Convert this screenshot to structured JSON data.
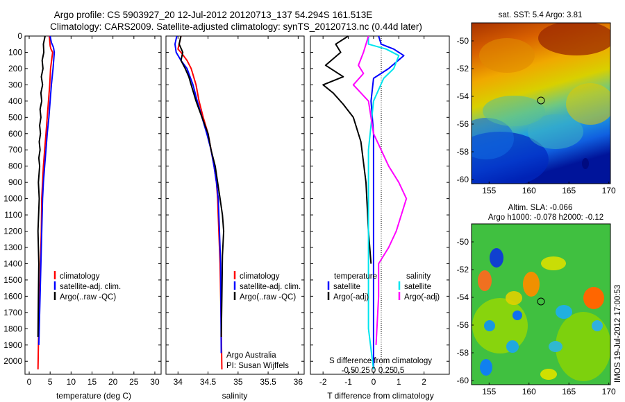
{
  "title": {
    "line1": "Argo profile: CS 5903927_20 12-Jul-2012 20120713_137 54.294S 161.513E",
    "line2": "Climatology: CARS2009. Satellite-adjusted climatology: synTS_20120713.nc (0.44d later)"
  },
  "side_label": "IMOS 19-Jul-2012 17:00:53",
  "colors": {
    "climatology": "#ff0000",
    "satellite": "#0000ff",
    "argo": "#000000",
    "sat_salinity": "#00e5ee",
    "argo_salinity": "#ff00ff"
  },
  "chart_data": [
    {
      "type": "line",
      "id": "temperature",
      "xlabel": "temperature (deg C)",
      "ylabel": "",
      "xlim": [
        -1,
        31.5
      ],
      "ylim": [
        2080,
        0
      ],
      "xticks": [
        0,
        5,
        10,
        15,
        20,
        25,
        30
      ],
      "yticks": [
        0,
        100,
        200,
        300,
        400,
        500,
        600,
        700,
        800,
        900,
        1000,
        1100,
        1200,
        1300,
        1400,
        1500,
        1600,
        1700,
        1800,
        1900,
        2000
      ],
      "legend": {
        "placement": "lower-right",
        "entries": [
          "climatology",
          "satellite-adj. clim.",
          "Argo(..raw -QC)"
        ]
      },
      "series": [
        {
          "name": "climatology",
          "color": "#ff0000",
          "x": [
            4.8,
            5.0,
            5.2,
            5.6,
            5.1,
            4.9,
            4.6,
            4.3,
            4.0,
            3.7,
            3.4,
            3.2,
            3.0,
            2.9,
            2.7,
            2.6,
            2.5,
            2.4,
            2.3,
            2.2,
            2.1
          ],
          "y": [
            0,
            60,
            80,
            100,
            200,
            300,
            400,
            500,
            600,
            700,
            800,
            900,
            1000,
            1200,
            1400,
            1500,
            1600,
            1700,
            1800,
            1900,
            2050
          ]
        },
        {
          "name": "satellite-adj. clim.",
          "color": "#0000ff",
          "x": [
            5.0,
            5.3,
            5.8,
            6.0,
            5.7,
            5.3,
            5.0,
            4.7,
            4.3,
            4.0,
            3.7,
            3.4,
            3.2,
            3.0,
            2.8,
            2.6,
            2.5,
            2.4,
            2.3
          ],
          "y": [
            0,
            40,
            70,
            100,
            200,
            300,
            400,
            500,
            600,
            700,
            800,
            900,
            1000,
            1200,
            1400,
            1600,
            1700,
            1800,
            1900
          ]
        },
        {
          "name": "Argo(..raw -QC)",
          "color": "#000000",
          "x": [
            3.8,
            3.4,
            3.5,
            3.1,
            3.3,
            2.9,
            3.2,
            2.8,
            3.0,
            2.6,
            2.8,
            2.5,
            2.7,
            2.4,
            2.6,
            2.3,
            2.5,
            2.2,
            2.4,
            2.1,
            2.3,
            2.2,
            2.1
          ],
          "y": [
            0,
            50,
            100,
            150,
            200,
            250,
            300,
            350,
            400,
            450,
            500,
            550,
            600,
            650,
            700,
            750,
            800,
            900,
            1000,
            1200,
            1400,
            1600,
            1850
          ]
        }
      ]
    },
    {
      "type": "line",
      "id": "salinity",
      "xlabel": "salinity",
      "ylabel": "",
      "xlim": [
        33.8,
        36.1
      ],
      "ylim": [
        2080,
        0
      ],
      "xticks": [
        34,
        34.5,
        35,
        35.5,
        36
      ],
      "legend": {
        "placement": "lower-right",
        "entries": [
          "climatology",
          "satellite-adj. clim.",
          "Argo(..raw -QC)"
        ]
      },
      "annotations": [
        "Argo Australia",
        "PI: Susan Wijffels"
      ],
      "series": [
        {
          "name": "climatology",
          "color": "#ff0000",
          "x": [
            34.05,
            34.0,
            34.05,
            34.15,
            34.22,
            34.3,
            34.35,
            34.42,
            34.5,
            34.55,
            34.6,
            34.64,
            34.66,
            34.68,
            34.7,
            34.72,
            34.73
          ],
          "y": [
            0,
            80,
            100,
            150,
            200,
            300,
            400,
            500,
            600,
            700,
            800,
            900,
            1000,
            1200,
            1400,
            1800,
            2050
          ]
        },
        {
          "name": "satellite-adj. clim.",
          "color": "#0000ff",
          "x": [
            33.98,
            33.95,
            33.97,
            34.05,
            34.15,
            34.25,
            34.32,
            34.4,
            34.48,
            34.55,
            34.6,
            34.64,
            34.67,
            34.69,
            34.71,
            34.72
          ],
          "y": [
            0,
            50,
            100,
            150,
            200,
            300,
            400,
            500,
            600,
            700,
            800,
            900,
            1000,
            1200,
            1400,
            1950
          ]
        },
        {
          "name": "Argo(..raw -QC)",
          "color": "#000000",
          "x": [
            34.05,
            34.02,
            34.08,
            34.05,
            34.12,
            34.18,
            34.22,
            34.3,
            34.35,
            34.4,
            34.5,
            34.55,
            34.62,
            34.66,
            34.7,
            34.74,
            34.76,
            34.74,
            34.73,
            34.72
          ],
          "y": [
            0,
            50,
            100,
            150,
            200,
            250,
            300,
            400,
            450,
            500,
            600,
            700,
            800,
            900,
            1000,
            1100,
            1200,
            1350,
            1600,
            1850
          ]
        }
      ]
    },
    {
      "type": "line",
      "id": "difference",
      "xlabel": "T difference from climatology",
      "top_xlabel": "S difference from climatology",
      "xlim": [
        -2.5,
        3
      ],
      "ylim": [
        2080,
        0
      ],
      "xticks": [
        -2,
        -1,
        0,
        1,
        2
      ],
      "top_xticks": [
        -0.5,
        -0.25,
        0,
        0.25,
        0.5
      ],
      "legend": {
        "placement": "lower-center",
        "group_titles": [
          "temperature",
          "salinity"
        ],
        "entries": [
          "satellite",
          "Argo(-adj)",
          "satellite",
          "Argo(-adj)"
        ]
      },
      "series": [
        {
          "name": "satellite",
          "group": "temperature",
          "color": "#0000ff",
          "x": [
            0.2,
            0.3,
            0.8,
            1.2,
            0.6,
            0.0,
            -0.1,
            0.0,
            0.0,
            0.0,
            0.0,
            0.0,
            0.0
          ],
          "y": [
            0,
            50,
            80,
            120,
            200,
            260,
            400,
            600,
            900,
            1200,
            1600,
            1900,
            2050
          ]
        },
        {
          "name": "Argo(-adj)",
          "group": "temperature",
          "color": "#000000",
          "x": [
            -1.0,
            -1.5,
            -1.3,
            -1.9,
            -1.2,
            -2.0,
            -1.6,
            -1.2,
            -0.8,
            -0.5,
            -0.3,
            -0.2,
            -0.1
          ],
          "y": [
            0,
            50,
            100,
            180,
            250,
            300,
            350,
            420,
            500,
            650,
            900,
            1200,
            1400
          ]
        },
        {
          "name": "satellite",
          "group": "salinity",
          "color": "#00e5ee",
          "x": [
            -0.1,
            -0.1,
            0.25,
            0.5,
            0.4,
            0.2,
            0.0,
            -0.1,
            -0.1,
            -0.1,
            -0.1,
            -0.1,
            0.0
          ],
          "y": [
            0,
            50,
            80,
            120,
            200,
            260,
            400,
            700,
            900,
            1200,
            1500,
            1800,
            2050
          ]
        },
        {
          "name": "Argo(-adj)",
          "group": "salinity",
          "color": "#ff00ff",
          "x": [
            -0.1,
            -0.2,
            -0.3,
            -0.2,
            -0.4,
            -0.1,
            -0.05,
            0.0,
            0.15,
            0.3,
            0.5,
            0.65,
            0.55,
            0.45,
            0.3,
            0.1,
            0.1,
            0.05
          ],
          "y": [
            0,
            100,
            180,
            230,
            300,
            400,
            500,
            600,
            700,
            800,
            900,
            1000,
            1100,
            1200,
            1300,
            1400,
            1600,
            1900
          ]
        }
      ]
    },
    {
      "type": "heatmap",
      "id": "sst-map",
      "title": "sat. SST: 5.4  Argo: 3.81",
      "xlim": [
        152.8,
        170.2
      ],
      "ylim": [
        -60.3,
        -48.7
      ],
      "xticks": [
        155,
        160,
        165,
        170
      ],
      "yticks": [
        -50,
        -52,
        -54,
        -56,
        -58,
        -60
      ],
      "marker": {
        "lon": 161.5,
        "lat": -54.3
      }
    },
    {
      "type": "heatmap",
      "id": "sla-map",
      "title": "Altim. SLA: -0.066",
      "subtitle": "Argo h1000: -0.078 h2000: -0.12",
      "xlim": [
        152.8,
        170.2
      ],
      "ylim": [
        -60.3,
        -48.7
      ],
      "xticks": [
        155,
        160,
        165,
        170
      ],
      "yticks": [
        -50,
        -52,
        -54,
        -56,
        -58,
        -60
      ],
      "marker": {
        "lon": 161.5,
        "lat": -54.3
      }
    }
  ]
}
